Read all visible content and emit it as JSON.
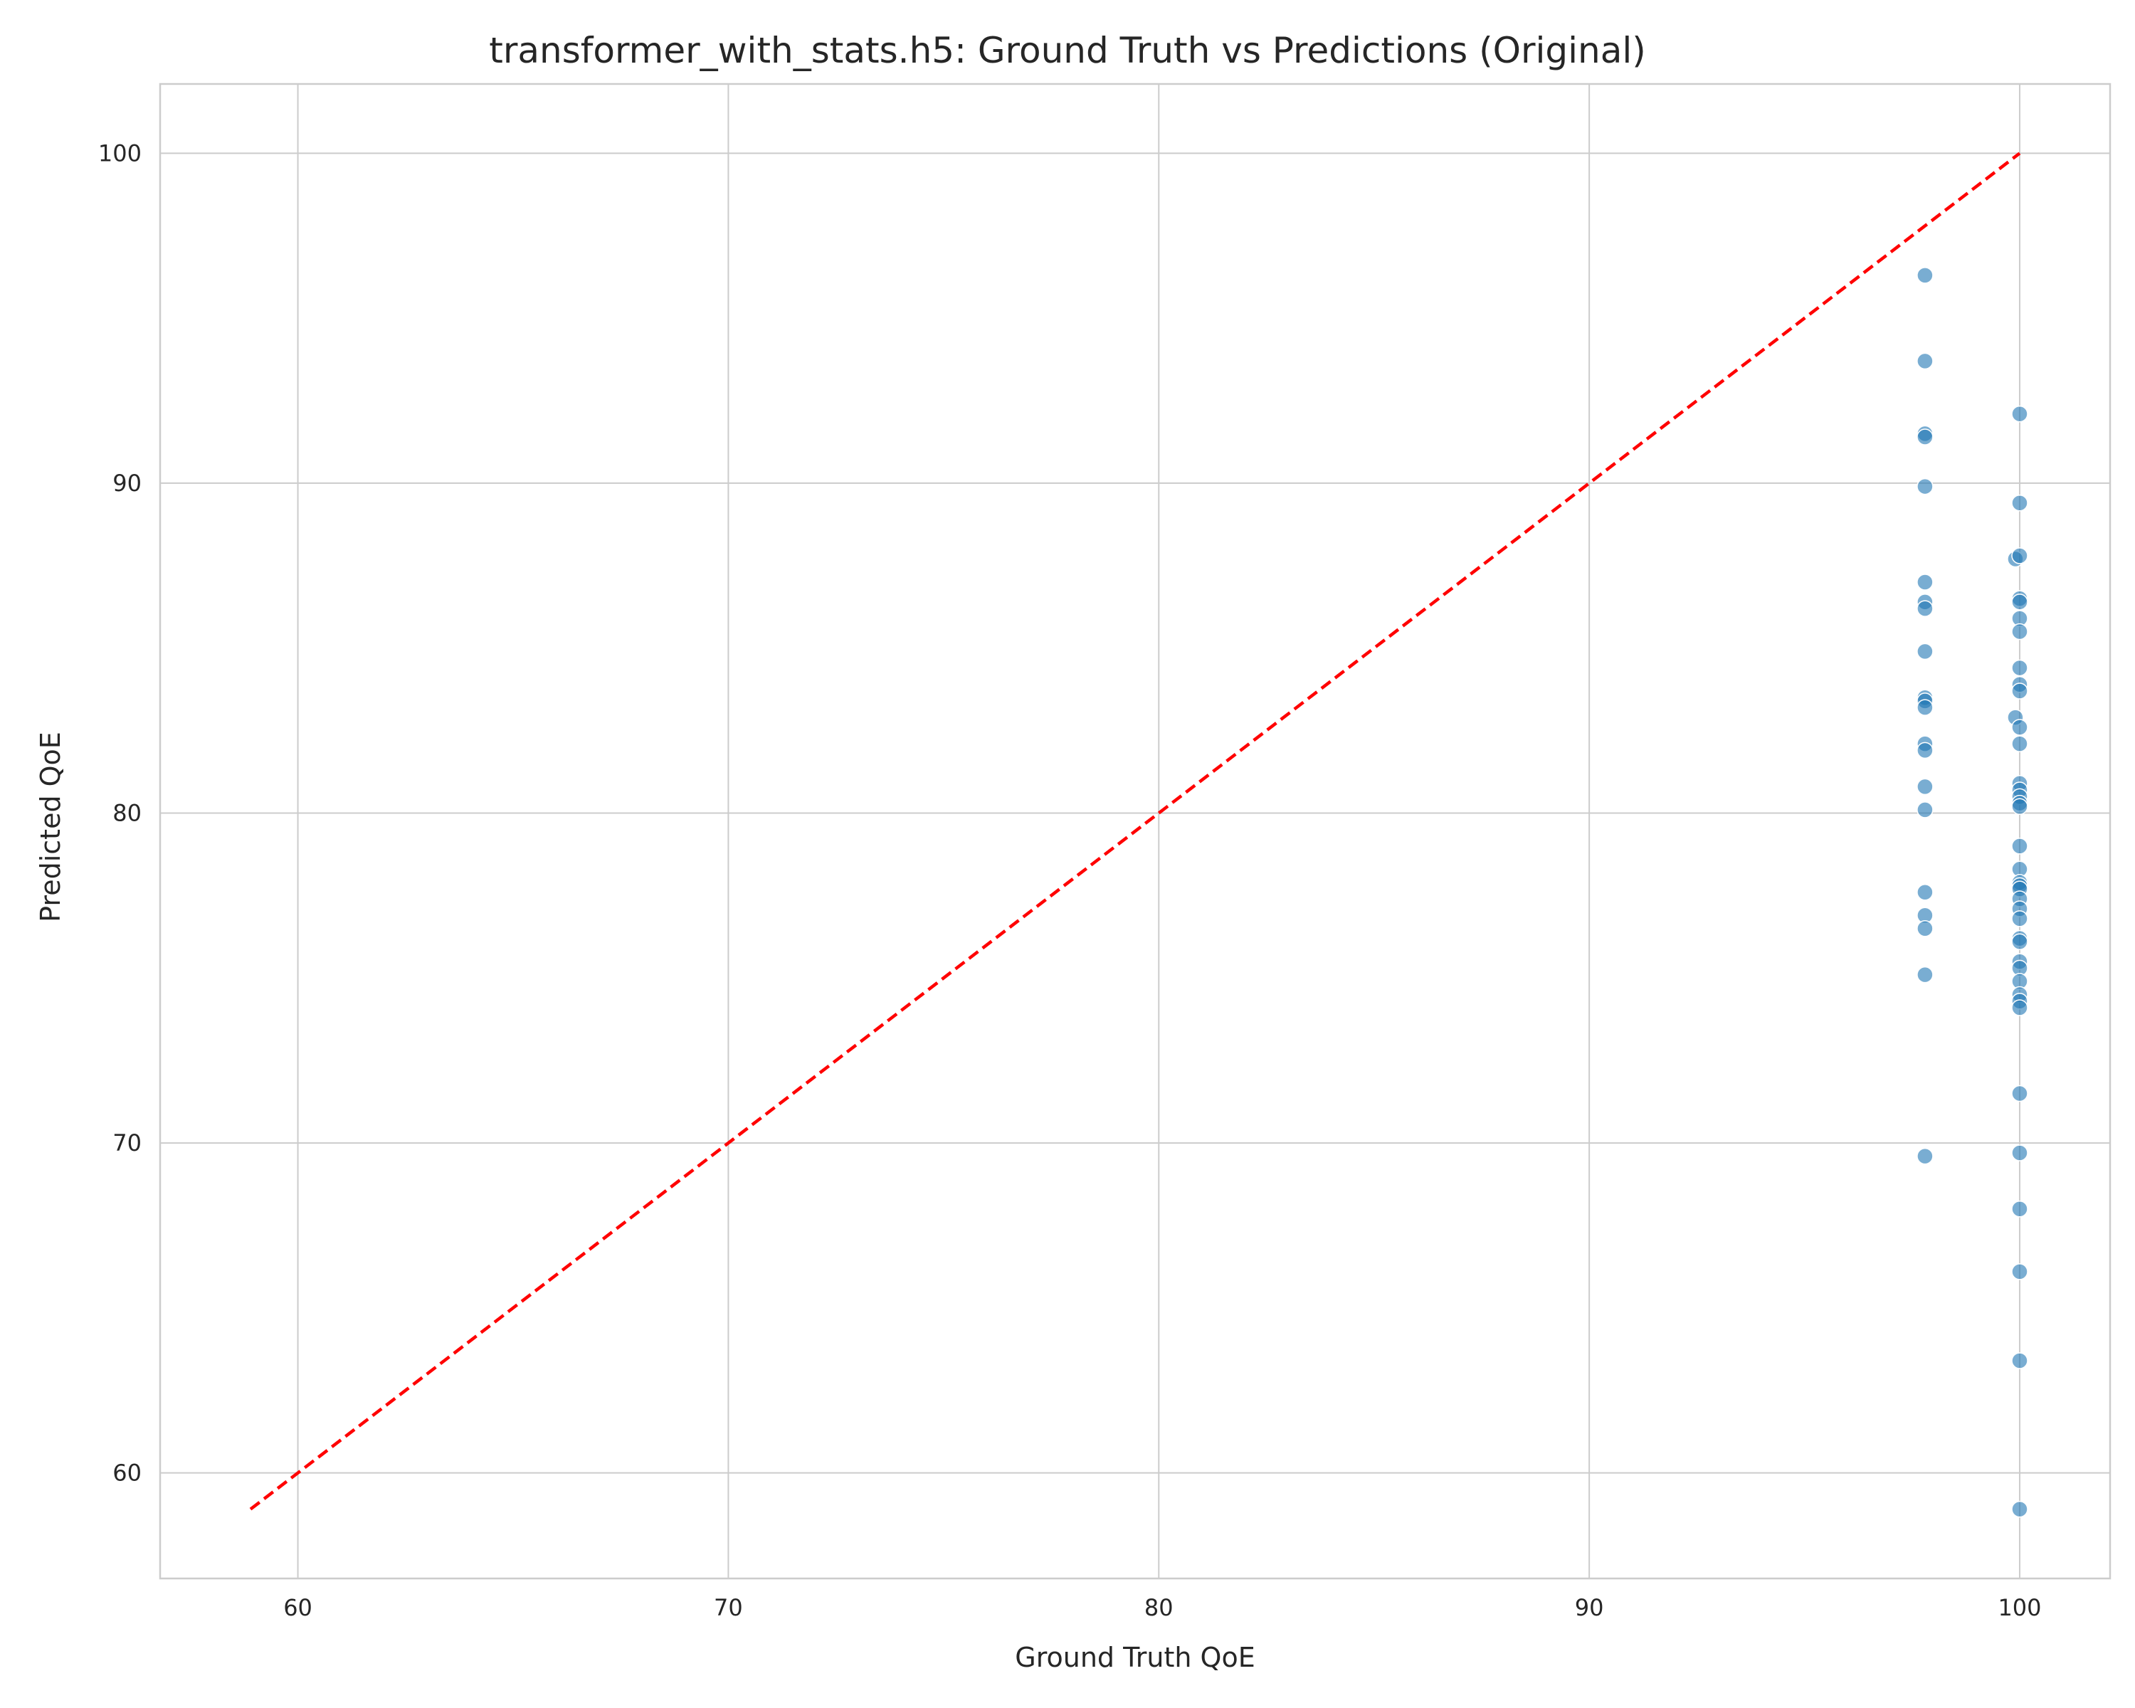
{
  "chart_data": {
    "type": "scatter",
    "title": "transformer_with_stats.h5: Ground Truth vs Predictions (Original)",
    "xlabel": "Ground Truth QoE",
    "ylabel": "Predicted QoE",
    "xlim": [
      56.8,
      102.1
    ],
    "ylim": [
      56.8,
      102.1
    ],
    "xticks": [
      60,
      70,
      80,
      90,
      100
    ],
    "yticks": [
      60,
      70,
      80,
      90,
      100
    ],
    "grid": true,
    "point_color": "#1f77b4",
    "reference_line": {
      "color": "#ff0000",
      "style": "dashed",
      "from": [
        58.9,
        58.9
      ],
      "to": [
        100,
        100
      ]
    },
    "points": [
      {
        "x": 97.8,
        "y": 96.3
      },
      {
        "x": 97.8,
        "y": 93.7
      },
      {
        "x": 97.8,
        "y": 91.5
      },
      {
        "x": 97.8,
        "y": 91.4
      },
      {
        "x": 97.8,
        "y": 89.9
      },
      {
        "x": 97.8,
        "y": 87.0
      },
      {
        "x": 97.8,
        "y": 86.4
      },
      {
        "x": 97.8,
        "y": 86.2
      },
      {
        "x": 97.8,
        "y": 84.9
      },
      {
        "x": 97.8,
        "y": 83.5
      },
      {
        "x": 97.8,
        "y": 83.4
      },
      {
        "x": 97.8,
        "y": 83.2
      },
      {
        "x": 97.8,
        "y": 82.1
      },
      {
        "x": 97.8,
        "y": 81.9
      },
      {
        "x": 97.8,
        "y": 80.8
      },
      {
        "x": 97.8,
        "y": 80.1
      },
      {
        "x": 97.8,
        "y": 77.6
      },
      {
        "x": 97.8,
        "y": 76.9
      },
      {
        "x": 97.8,
        "y": 76.5
      },
      {
        "x": 97.8,
        "y": 75.1
      },
      {
        "x": 97.8,
        "y": 69.6
      },
      {
        "x": 100.0,
        "y": 92.1
      },
      {
        "x": 100.0,
        "y": 89.4
      },
      {
        "x": 99.9,
        "y": 87.7
      },
      {
        "x": 100.0,
        "y": 87.8
      },
      {
        "x": 100.0,
        "y": 86.5
      },
      {
        "x": 100.0,
        "y": 86.4
      },
      {
        "x": 100.0,
        "y": 85.9
      },
      {
        "x": 100.0,
        "y": 85.5
      },
      {
        "x": 100.0,
        "y": 84.4
      },
      {
        "x": 100.0,
        "y": 83.9
      },
      {
        "x": 100.0,
        "y": 83.7
      },
      {
        "x": 99.9,
        "y": 82.9
      },
      {
        "x": 100.0,
        "y": 82.6
      },
      {
        "x": 100.0,
        "y": 82.1
      },
      {
        "x": 100.0,
        "y": 80.9
      },
      {
        "x": 100.0,
        "y": 80.7
      },
      {
        "x": 100.0,
        "y": 80.5
      },
      {
        "x": 100.0,
        "y": 80.3
      },
      {
        "x": 100.0,
        "y": 80.2
      },
      {
        "x": 100.0,
        "y": 79.0
      },
      {
        "x": 100.0,
        "y": 78.3
      },
      {
        "x": 100.0,
        "y": 77.9
      },
      {
        "x": 100.0,
        "y": 77.8
      },
      {
        "x": 100.0,
        "y": 77.7
      },
      {
        "x": 100.0,
        "y": 77.4
      },
      {
        "x": 100.0,
        "y": 77.1
      },
      {
        "x": 100.0,
        "y": 76.8
      },
      {
        "x": 100.0,
        "y": 76.2
      },
      {
        "x": 100.0,
        "y": 76.1
      },
      {
        "x": 100.0,
        "y": 75.5
      },
      {
        "x": 100.0,
        "y": 75.3
      },
      {
        "x": 100.0,
        "y": 74.9
      },
      {
        "x": 100.0,
        "y": 74.5
      },
      {
        "x": 100.0,
        "y": 74.3
      },
      {
        "x": 100.0,
        "y": 74.1
      },
      {
        "x": 100.0,
        "y": 71.5
      },
      {
        "x": 100.0,
        "y": 69.7
      },
      {
        "x": 100.0,
        "y": 68.0
      },
      {
        "x": 100.0,
        "y": 66.1
      },
      {
        "x": 100.0,
        "y": 63.4
      },
      {
        "x": 100.0,
        "y": 58.9
      }
    ]
  }
}
